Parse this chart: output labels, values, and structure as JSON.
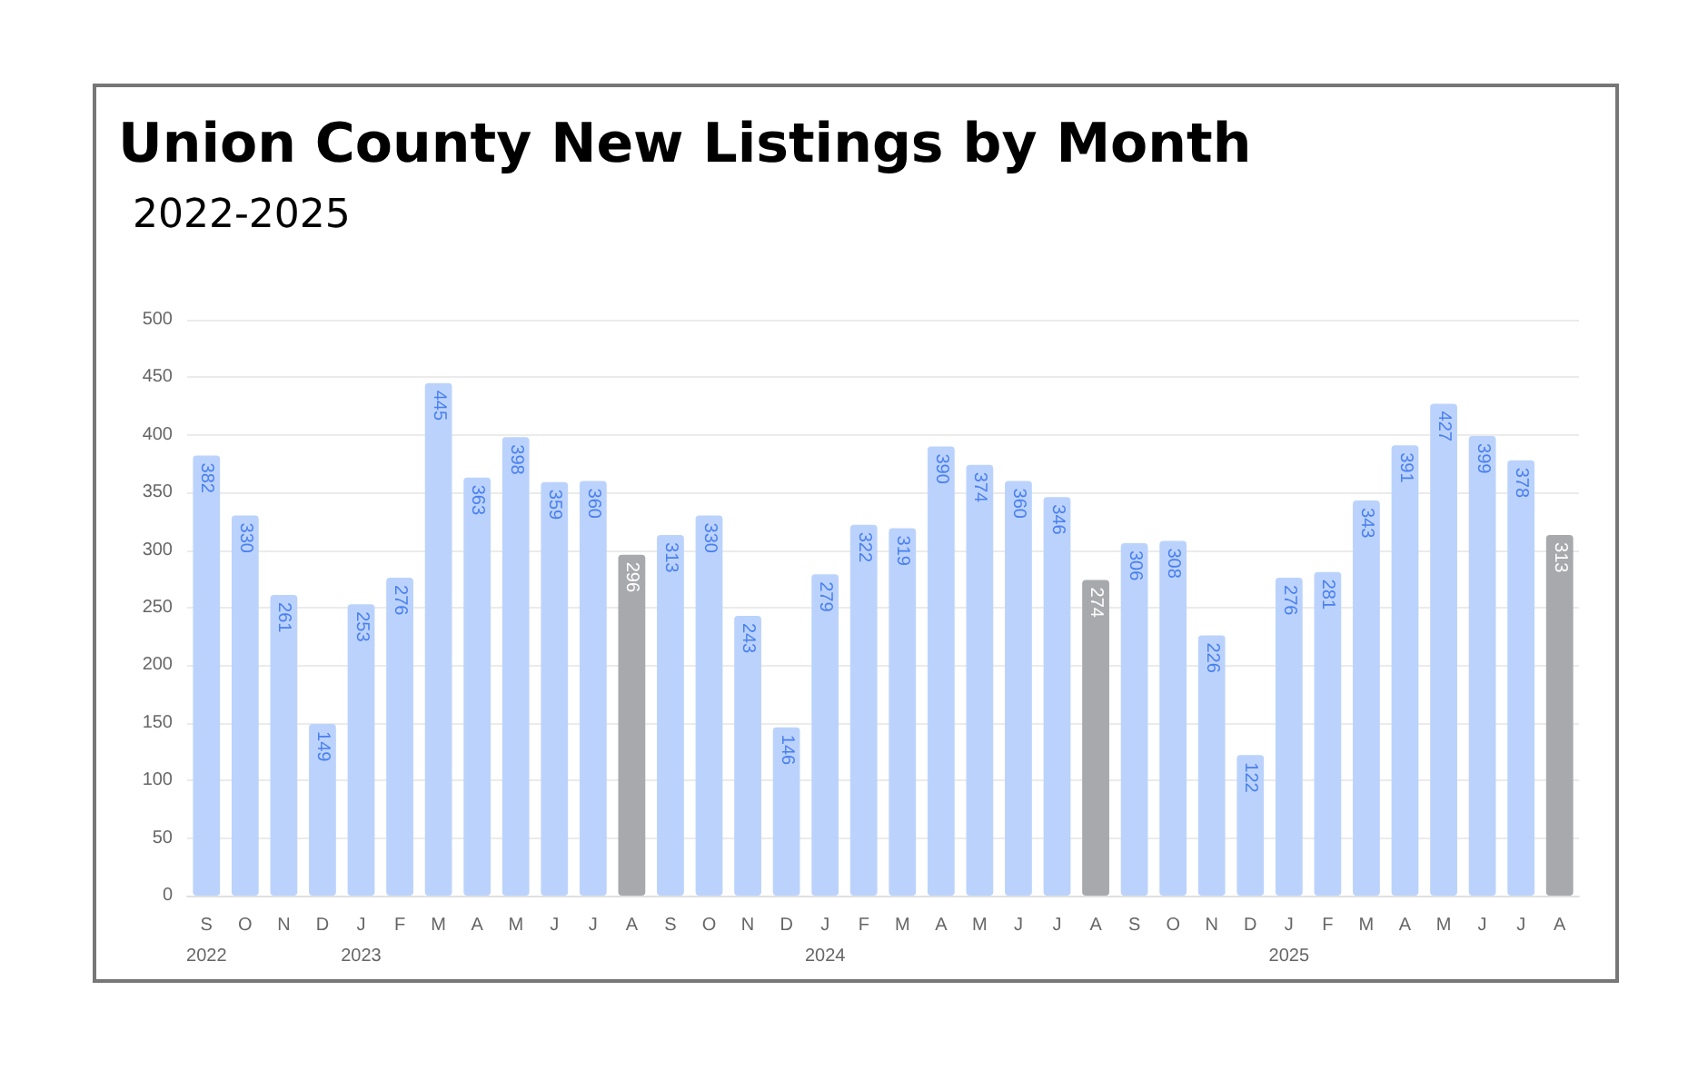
{
  "chart_data": {
    "type": "bar",
    "title": "Union County New Listings by Month",
    "subtitle": "2022-2025",
    "categories": [
      "S\n2022",
      "O",
      "N",
      "D",
      "J\n2023",
      "F",
      "M",
      "A",
      "M",
      "J",
      "J",
      "A",
      "S",
      "O",
      "N",
      "D",
      "J\n2024",
      "F",
      "M",
      "A",
      "M",
      "J",
      "J",
      "A",
      "S",
      "O",
      "N",
      "D",
      "J\n2025",
      "F",
      "M",
      "A",
      "M",
      "J",
      "J",
      "A"
    ],
    "values": [
      382,
      330,
      261,
      149,
      253,
      276,
      445,
      363,
      398,
      359,
      360,
      296,
      313,
      330,
      243,
      146,
      279,
      322,
      319,
      390,
      374,
      360,
      346,
      274,
      306,
      308,
      226,
      122,
      276,
      281,
      343,
      391,
      427,
      399,
      378,
      313
    ],
    "colors": [
      "#bbd3fc",
      "#bbd3fc",
      "#bbd3fc",
      "#bbd3fc",
      "#bbd3fc",
      "#bbd3fc",
      "#bbd3fc",
      "#bbd3fc",
      "#bbd3fc",
      "#bbd3fc",
      "#bbd3fc",
      "#a8a9ad",
      "#bbd3fc",
      "#bbd3fc",
      "#bbd3fc",
      "#bbd3fc",
      "#bbd3fc",
      "#bbd3fc",
      "#bbd3fc",
      "#bbd3fc",
      "#bbd3fc",
      "#bbd3fc",
      "#bbd3fc",
      "#a8a9ad",
      "#bbd3fc",
      "#bbd3fc",
      "#bbd3fc",
      "#bbd3fc",
      "#bbd3fc",
      "#bbd3fc",
      "#bbd3fc",
      "#bbd3fc",
      "#bbd3fc",
      "#bbd3fc",
      "#bbd3fc",
      "#a8a9ad"
    ],
    "ylim": [
      0,
      500
    ],
    "yticks": [
      0,
      50,
      100,
      150,
      200,
      250,
      300,
      350,
      400,
      450,
      500
    ],
    "grid": "y",
    "data_labels": true
  }
}
